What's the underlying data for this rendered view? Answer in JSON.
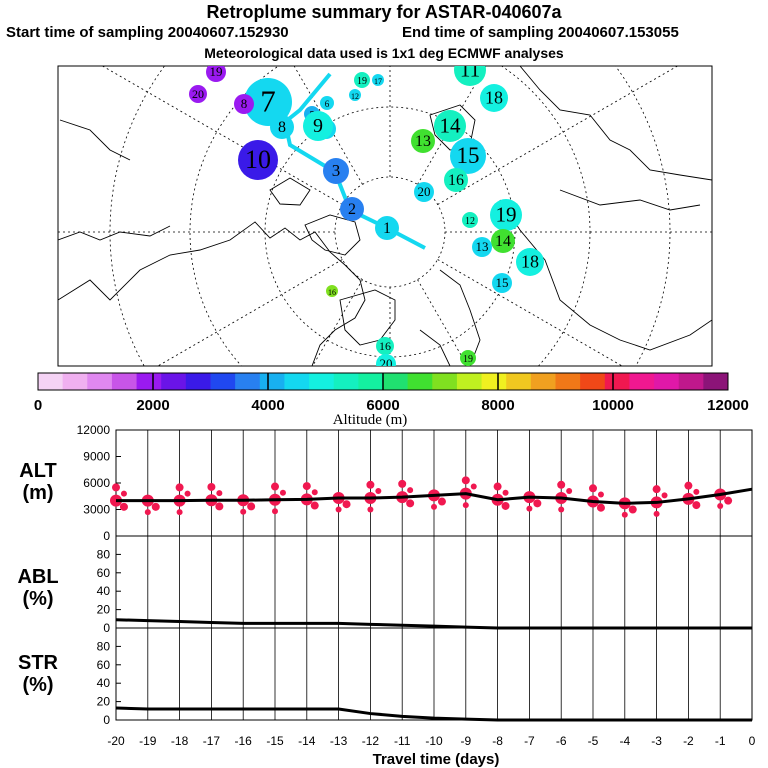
{
  "header": {
    "title": "Retroplume summary for ASTAR-040607a",
    "start": "Start time of sampling 20040607.152930",
    "end": "End time of sampling 20040607.153055",
    "met": "Meteorological data used is 1x1 deg ECMWF analyses"
  },
  "colorbar": {
    "label": "Altitude (m)",
    "ticks": [
      "0",
      "2000",
      "4000",
      "6000",
      "8000",
      "10000",
      "12000"
    ],
    "colors": [
      "#f5d3f5",
      "#f0b0f0",
      "#e088f0",
      "#c855e8",
      "#9a1af0",
      "#6a14e8",
      "#3a1ae8",
      "#2048f0",
      "#2880f0",
      "#18b0f0",
      "#14d8f0",
      "#14f0e0",
      "#14f0c0",
      "#14f0a0",
      "#20e070",
      "#40e030",
      "#80e020",
      "#c0f020",
      "#f0f020",
      "#f0c820",
      "#f0a020",
      "#f07818",
      "#f04818",
      "#f01850",
      "#f01890",
      "#e018a8",
      "#c0188c",
      "#8c1478"
    ]
  },
  "map": {
    "markers": [
      {
        "t": "1",
        "c": "#14d8f0"
      },
      {
        "t": "2",
        "c": "#2880f0"
      },
      {
        "t": "3",
        "c": "#2880f0"
      },
      {
        "t": "4",
        "c": "#14d8f0"
      },
      {
        "t": "5",
        "c": "#18b0f0"
      },
      {
        "t": "6",
        "c": "#14d8f0"
      },
      {
        "t": "7",
        "c": "#14d8f0"
      },
      {
        "t": "8",
        "c": "#14d8f0"
      },
      {
        "t": "9",
        "c": "#14f0e0"
      },
      {
        "t": "10",
        "c": "#3a1ae8"
      },
      {
        "t": "11",
        "c": "#14f0c0"
      },
      {
        "t": "12",
        "c": "#14d8f0"
      },
      {
        "t": "13",
        "c": "#40e030"
      },
      {
        "t": "14",
        "c": "#14f0c0"
      },
      {
        "t": "15",
        "c": "#14d8f0"
      },
      {
        "t": "16",
        "c": "#14f0c0"
      },
      {
        "t": "17",
        "c": "#14d8f0"
      },
      {
        "t": "18",
        "c": "#14f0e0"
      },
      {
        "t": "19",
        "c": "#14f0e0"
      },
      {
        "t": "20",
        "c": "#14d8f0"
      },
      {
        "t": "19",
        "c": "#9a1af0"
      },
      {
        "t": "8",
        "c": "#9a1af0"
      },
      {
        "t": "20",
        "c": "#9a1af0"
      },
      {
        "t": "14",
        "c": "#40e030"
      },
      {
        "t": "15",
        "c": "#14d8f0"
      },
      {
        "t": "13",
        "c": "#14d8f0"
      },
      {
        "t": "16",
        "c": "#14f0c0"
      },
      {
        "t": "18",
        "c": "#14f0e0"
      },
      {
        "t": "12",
        "c": "#14f0c0"
      },
      {
        "t": "19",
        "c": "#40e030"
      },
      {
        "t": "20",
        "c": "#14f0e0"
      },
      {
        "t": "19",
        "c": "#14f0c0"
      },
      {
        "t": "16",
        "c": "#80e020"
      }
    ]
  },
  "panels": {
    "alt": {
      "label1": "ALT",
      "label2": "(m)",
      "yticks": [
        "0",
        "3000",
        "6000",
        "9000",
        "12000"
      ]
    },
    "abl": {
      "label1": "ABL",
      "label2": "(%)",
      "yticks": [
        "0",
        "20",
        "40",
        "60",
        "80"
      ]
    },
    "str": {
      "label1": "STR",
      "label2": "(%)",
      "yticks": [
        "0",
        "20",
        "40",
        "60",
        "80"
      ]
    }
  },
  "xaxis": {
    "ticks": [
      "-20",
      "-19",
      "-18",
      "-17",
      "-16",
      "-15",
      "-14",
      "-13",
      "-12",
      "-11",
      "-10",
      "-9",
      "-8",
      "-7",
      "-6",
      "-5",
      "-4",
      "-3",
      "-2",
      "-1",
      "0"
    ],
    "label": "Travel time (days)"
  },
  "chart_data": [
    {
      "type": "line",
      "title": "ALT",
      "ylabel": "(m)",
      "xlabel": "Travel time (days)",
      "ylim": [
        0,
        12000
      ],
      "xlim": [
        -20,
        0
      ],
      "x": [
        -20,
        -19,
        -18,
        -17,
        -16,
        -15,
        -14,
        -13,
        -12,
        -11,
        -10,
        -9,
        -8,
        -7,
        -6,
        -5,
        -4,
        -3,
        -2,
        -1,
        0
      ],
      "series": [
        {
          "name": "mean altitude",
          "values": [
            4000,
            4000,
            4000,
            4050,
            4050,
            4100,
            4150,
            4300,
            4300,
            4400,
            4600,
            4800,
            4100,
            4400,
            4300,
            3900,
            3700,
            3800,
            4200,
            4700,
            5300
          ]
        }
      ],
      "scatter_color": "#f01850"
    },
    {
      "type": "line",
      "title": "ABL",
      "ylabel": "(%)",
      "xlabel": "Travel time (days)",
      "ylim": [
        0,
        100
      ],
      "xlim": [
        -20,
        0
      ],
      "x": [
        -20,
        -19,
        -18,
        -17,
        -16,
        -15,
        -14,
        -13,
        -12,
        -11,
        -10,
        -9,
        -8,
        -7,
        -6,
        -5,
        -4,
        -3,
        -2,
        -1,
        0
      ],
      "series": [
        {
          "name": "ABL fraction",
          "values": [
            9,
            8,
            7,
            6,
            5,
            5,
            5,
            5,
            4,
            3,
            2,
            1,
            0,
            0,
            0,
            0,
            0,
            0,
            0,
            0,
            0
          ]
        }
      ]
    },
    {
      "type": "line",
      "title": "STR",
      "ylabel": "(%)",
      "xlabel": "Travel time (days)",
      "ylim": [
        0,
        100
      ],
      "xlim": [
        -20,
        0
      ],
      "x": [
        -20,
        -19,
        -18,
        -17,
        -16,
        -15,
        -14,
        -13,
        -12,
        -11,
        -10,
        -9,
        -8,
        -7,
        -6,
        -5,
        -4,
        -3,
        -2,
        -1,
        0
      ],
      "series": [
        {
          "name": "stratospheric fraction",
          "values": [
            13,
            12,
            12,
            12,
            12,
            12,
            12,
            12,
            7,
            4,
            2,
            1,
            0,
            0,
            0,
            0,
            0,
            0,
            0,
            0,
            0
          ]
        }
      ]
    }
  ]
}
